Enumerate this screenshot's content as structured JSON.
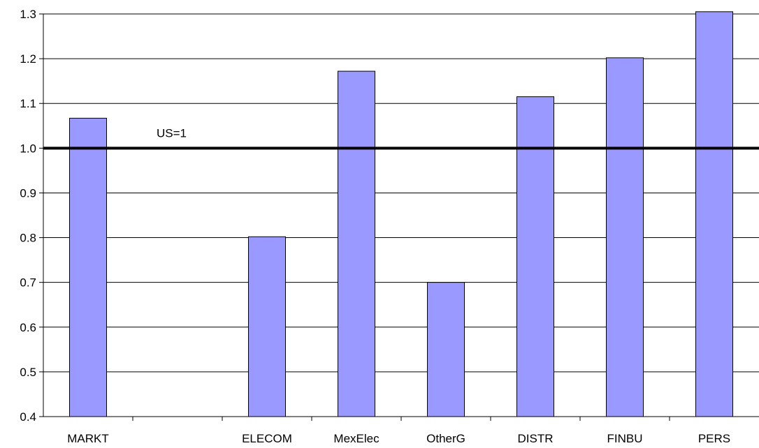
{
  "chart_data": {
    "type": "bar",
    "categories": [
      "MARKT",
      "",
      "ELECOM",
      "MexElec",
      "OtherG",
      "DISTR",
      "FINBU",
      "PERS"
    ],
    "values": [
      1.067,
      null,
      0.802,
      1.172,
      0.7,
      1.115,
      1.202,
      1.305
    ],
    "ylim": [
      0.4,
      1.3
    ],
    "yticks": [
      "0.4",
      "0.5",
      "0.6",
      "0.7",
      "0.8",
      "0.9",
      "1.0",
      "1.1",
      "1.2",
      "1.3"
    ],
    "grid": true,
    "reference_line": {
      "value": 1.0,
      "label": "US=1"
    },
    "colors": {
      "bar_fill": "#9999ff",
      "bar_stroke": "#000000",
      "grid": "#000000",
      "reference_line": "#000000"
    }
  }
}
